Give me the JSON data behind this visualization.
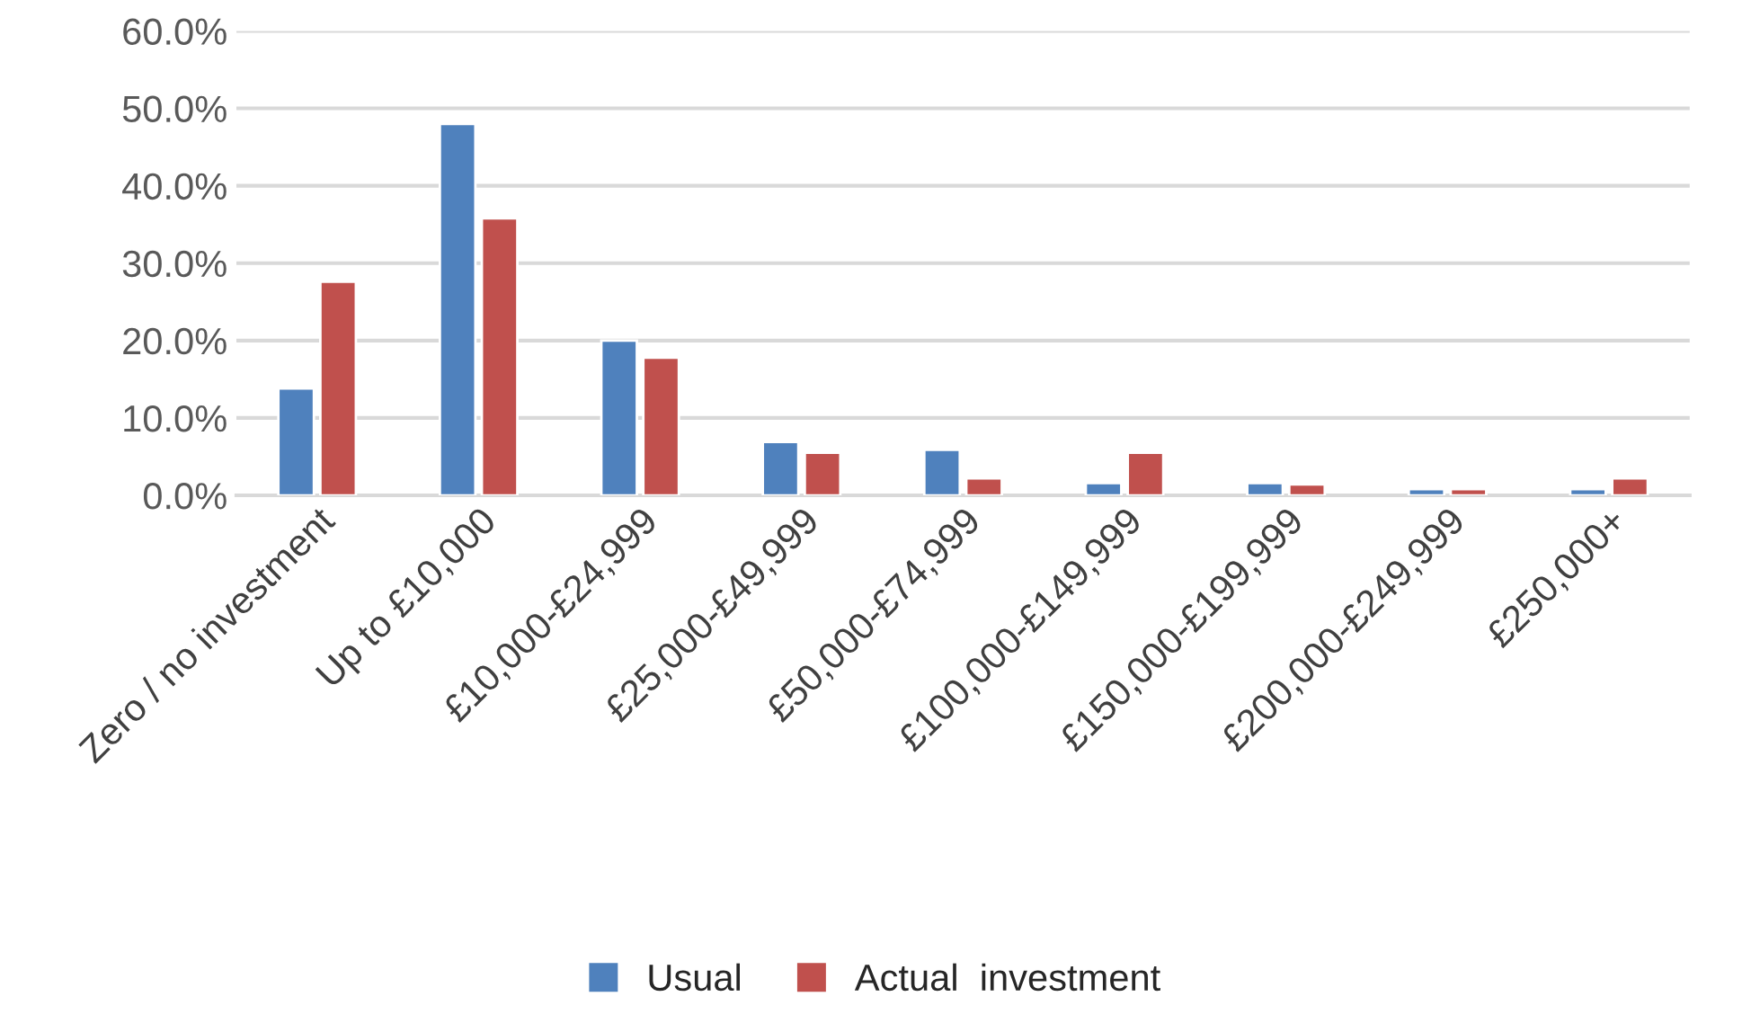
{
  "chart_data": {
    "type": "bar",
    "categories": [
      "Zero / no investment",
      "Up to £10,000",
      "£10,000-£24,999",
      "£25,000-£49,999",
      "£50,000-£74,999",
      "£100,000-£149,999",
      "£150,000-£199,999",
      "£200,000-£249,999",
      "£250,000+"
    ],
    "series": [
      {
        "name": "Usual",
        "color": "#4f81bd",
        "values": [
          13.8,
          48.0,
          20.0,
          6.9,
          5.9,
          1.6,
          1.6,
          0.8,
          0.8
        ]
      },
      {
        "name": "Actual  investment",
        "color": "#c0504d",
        "values": [
          27.6,
          35.8,
          17.8,
          5.5,
          2.2,
          5.5,
          1.4,
          0.8,
          2.2
        ]
      }
    ],
    "ylim": [
      0,
      60
    ],
    "yticks": [
      {
        "value": 0,
        "label": "0.0%"
      },
      {
        "value": 10,
        "label": "10.0%"
      },
      {
        "value": 20,
        "label": "20.0%"
      },
      {
        "value": 30,
        "label": "30.0%"
      },
      {
        "value": 40,
        "label": "40.0%"
      },
      {
        "value": 50,
        "label": "50.0%"
      },
      {
        "value": 60,
        "label": "60.0%"
      }
    ],
    "grid": "y",
    "legend": "bottom"
  }
}
